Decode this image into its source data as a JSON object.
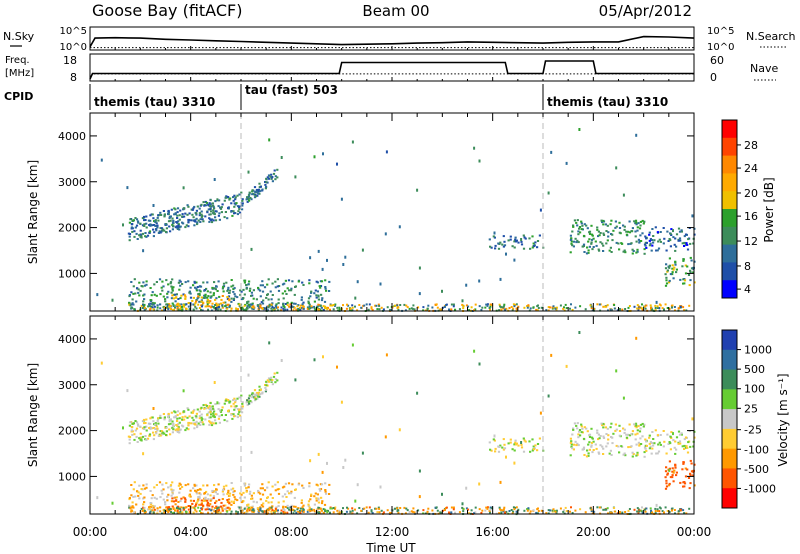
{
  "header": {
    "station": "Goose Bay (fitACF)",
    "beam": "Beam 00",
    "date": "05/Apr/2012"
  },
  "panels": {
    "nsky_label": "N.Sky",
    "nsearch_label": "N.Search",
    "nsky_ticks": [
      "10^5",
      "10^0"
    ],
    "nsearch_ticks": [
      "10^5",
      "10^0"
    ],
    "freq_label_1": "Freq.",
    "freq_label_2": "[MHz]",
    "freq_ticks": [
      "18",
      "8"
    ],
    "nave_label": "Nave",
    "nave_ticks": [
      "60",
      "0"
    ],
    "cpid_label": "CPID",
    "cpid_segments": [
      {
        "label": "themis (tau) 3310",
        "start_hour": 0,
        "end_hour": 6
      },
      {
        "label": "tau (fast) 503",
        "start_hour": 6,
        "end_hour": 18
      },
      {
        "label": "themis (tau) 3310",
        "start_hour": 18,
        "end_hour": 24
      }
    ]
  },
  "colorbars": {
    "power": {
      "label": "Power [dB]",
      "ticks": [
        "28",
        "24",
        "20",
        "16",
        "12",
        "8",
        "4"
      ],
      "colors": [
        "#ff0000",
        "#ff4400",
        "#ff8800",
        "#ffaa00",
        "#f0c000",
        "#2ca02c",
        "#3c8c5a",
        "#2e6e9a",
        "#1f4fa8",
        "#0000ff"
      ]
    },
    "velocity": {
      "label": "Velocity [m s⁻¹]",
      "ticks": [
        "1000",
        "500",
        "100",
        "25",
        "-25",
        "-100",
        "-500",
        "-1000"
      ],
      "colors": [
        "#2040b0",
        "#2f6fa0",
        "#3c8c5a",
        "#66cc33",
        "#c8c8c8",
        "#ffcc33",
        "#ff9900",
        "#ff5500",
        "#ff0000"
      ]
    }
  },
  "axes": {
    "ylabel": "Slant Range [km]",
    "yticks": [
      "4000",
      "3000",
      "2000",
      "1000"
    ],
    "xticks": [
      "00:00",
      "04:00",
      "08:00",
      "12:00",
      "16:00",
      "20:00",
      "00:00"
    ],
    "xlabel": "Time UT"
  },
  "chart_data": [
    {
      "type": "line",
      "title": "N.Sky / N.Search",
      "x": [
        0,
        0.2,
        1,
        2,
        3,
        4,
        5,
        6,
        7,
        8,
        9,
        10,
        11,
        12,
        13,
        14,
        15,
        16,
        17,
        18,
        19,
        20,
        21,
        22,
        23,
        24
      ],
      "series": [
        {
          "name": "N.Sky",
          "values": [
            0.3,
            2.6,
            2.7,
            2.6,
            2.3,
            2.1,
            1.9,
            1.7,
            1.5,
            1.3,
            1.1,
            0.9,
            1.0,
            1.1,
            1.3,
            1.4,
            1.6,
            1.5,
            1.4,
            1.3,
            1.5,
            1.6,
            1.6,
            3.0,
            2.9,
            2.6
          ]
        },
        {
          "name": "N.Search",
          "values": [
            0.1,
            0.1,
            0.1,
            0.1,
            0.1,
            0.1,
            0.1,
            0.1,
            0.1,
            0.1,
            0.1,
            0.1,
            0.1,
            0.1,
            0.1,
            0.1,
            0.1,
            0.1,
            0.1,
            0.1,
            0.1,
            0.1,
            0.1,
            0.1,
            0.1,
            0.1
          ]
        }
      ],
      "ylim": [
        0,
        5
      ]
    },
    {
      "type": "line",
      "title": "Freq. [MHz] / Nave",
      "x": [
        0,
        0.1,
        9.9,
        10,
        16.5,
        16.6,
        18,
        18.1,
        20,
        20.1,
        24
      ],
      "series": [
        {
          "name": "Freq.",
          "values": [
            8,
            10.5,
            10.5,
            15.5,
            15.5,
            10.5,
            10.5,
            16.2,
            16.2,
            10.5,
            10.5
          ]
        },
        {
          "name": "Nave",
          "values": [
            0,
            14,
            14,
            14,
            14,
            14,
            14,
            14,
            14,
            14,
            14
          ]
        }
      ],
      "ylim": [
        8,
        18
      ]
    },
    {
      "type": "heatmap",
      "title": "Power [dB]",
      "xlabel": "Time UT",
      "ylabel": "Slant Range [km]",
      "xlim": [
        0,
        24
      ],
      "ylim": [
        180,
        4500
      ],
      "regions": [
        {
          "t0": 1.5,
          "t1": 6.0,
          "r0": 1700,
          "r1": 2700,
          "value": 7
        },
        {
          "t0": 6.0,
          "t1": 7.4,
          "r0": 2500,
          "r1": 3200,
          "value": 7
        },
        {
          "t0": 1.5,
          "t1": 9.5,
          "r0": 200,
          "r1": 900,
          "value": 9
        },
        {
          "t0": 3.0,
          "t1": 5.5,
          "r0": 250,
          "r1": 550,
          "value": 18
        },
        {
          "t0": 15.8,
          "t1": 18.0,
          "r0": 1550,
          "r1": 1850,
          "value": 7
        },
        {
          "t0": 19.0,
          "t1": 22.0,
          "r0": 1450,
          "r1": 2200,
          "value": 10
        },
        {
          "t0": 22.0,
          "t1": 24.0,
          "r0": 1500,
          "r1": 2050,
          "value": 6
        },
        {
          "t0": 22.8,
          "t1": 24.0,
          "r0": 750,
          "r1": 1400,
          "value": 11
        }
      ]
    },
    {
      "type": "heatmap",
      "title": "Velocity [m s⁻¹]",
      "xlabel": "Time UT",
      "ylabel": "Slant Range [km]",
      "xlim": [
        0,
        24
      ],
      "ylim": [
        180,
        4500
      ],
      "regions": [
        {
          "t0": 1.5,
          "t1": 6.0,
          "r0": 1700,
          "r1": 2700,
          "value": 0
        },
        {
          "t0": 6.0,
          "t1": 7.4,
          "r0": 2500,
          "r1": 3200,
          "value": 10
        },
        {
          "t0": 1.5,
          "t1": 9.5,
          "r0": 200,
          "r1": 900,
          "value": -50
        },
        {
          "t0": 3.0,
          "t1": 5.5,
          "r0": 250,
          "r1": 550,
          "value": -300
        },
        {
          "t0": 15.8,
          "t1": 18.0,
          "r0": 1550,
          "r1": 1850,
          "value": 0
        },
        {
          "t0": 19.0,
          "t1": 22.0,
          "r0": 1450,
          "r1": 2200,
          "value": 0
        },
        {
          "t0": 22.0,
          "t1": 24.0,
          "r0": 1500,
          "r1": 2050,
          "value": 0
        },
        {
          "t0": 22.8,
          "t1": 24.0,
          "r0": 750,
          "r1": 1400,
          "value": -300
        }
      ]
    }
  ]
}
